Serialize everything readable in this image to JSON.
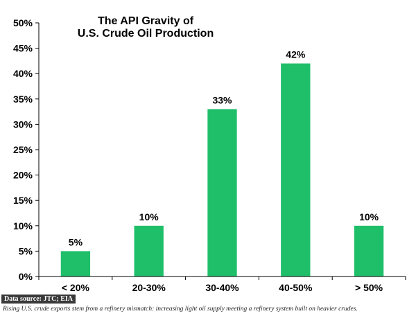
{
  "chart_data": {
    "type": "bar",
    "title_lines": [
      "The API Gravity of",
      "U.S. Crude Oil Production"
    ],
    "categories": [
      "< 20%",
      "20-30%",
      "30-40%",
      "40-50%",
      "> 50%"
    ],
    "values": [
      5,
      10,
      33,
      42,
      10
    ],
    "data_labels": [
      "5%",
      "10%",
      "33%",
      "42%",
      "10%"
    ],
    "yticks": [
      "0%",
      "5%",
      "10%",
      "15%",
      "20%",
      "25%",
      "30%",
      "35%",
      "40%",
      "45%",
      "50%"
    ],
    "ylim": [
      0,
      50
    ],
    "ystep": 5,
    "grid": false,
    "bar_color": "#1fbf6a"
  },
  "footer": {
    "source": "Data source: JTC; EIA",
    "caption": "Rising U.S. crude exports stem from a refinery mismatch: increasing light oil supply meeting a refinery system built on heavier crudes."
  }
}
